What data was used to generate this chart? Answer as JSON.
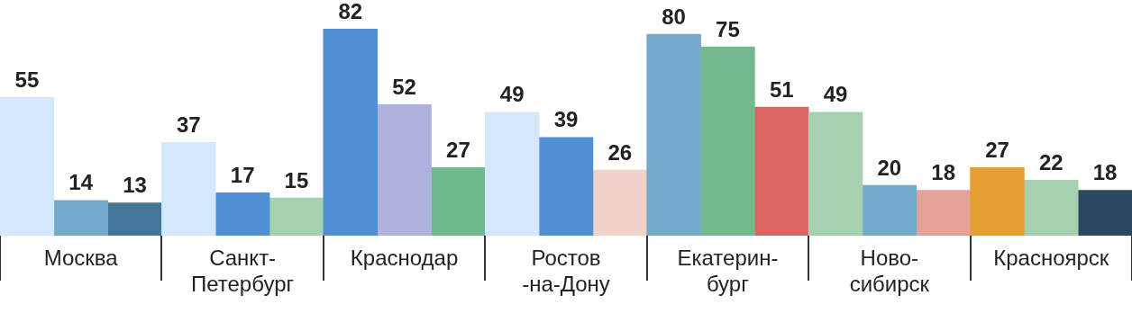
{
  "chart_data": {
    "type": "bar",
    "categories": [
      "Москва",
      "Санкт-\nПетербург",
      "Краснодар",
      "Ростов\n-на-Дону",
      "Екатерин-\nбург",
      "Ново-\nсибирск",
      "Красноярск"
    ],
    "series": [
      {
        "values": [
          55,
          37,
          82,
          49,
          80,
          49,
          27
        ],
        "colors": [
          "#d3e8fa",
          "#d3e8fa",
          "#4f8fd4",
          "#d3e8fa",
          "#74aac9",
          "#a6d1b0",
          "#e69f33"
        ]
      },
      {
        "values": [
          14,
          17,
          52,
          39,
          75,
          20,
          22
        ],
        "colors": [
          "#74aac9",
          "#4f8fd4",
          "#aeb2dc",
          "#4f8fd4",
          "#72b98c",
          "#74aac9",
          "#a6d1b0"
        ]
      },
      {
        "values": [
          13,
          15,
          27,
          26,
          51,
          18,
          18
        ],
        "colors": [
          "#44779a",
          "#a6d1b0",
          "#6fb98c",
          "#f0d2ca",
          "#d96562",
          "#e6a19a",
          "#2a4862"
        ]
      }
    ],
    "data_labels": true,
    "grid": false,
    "legend": false
  }
}
